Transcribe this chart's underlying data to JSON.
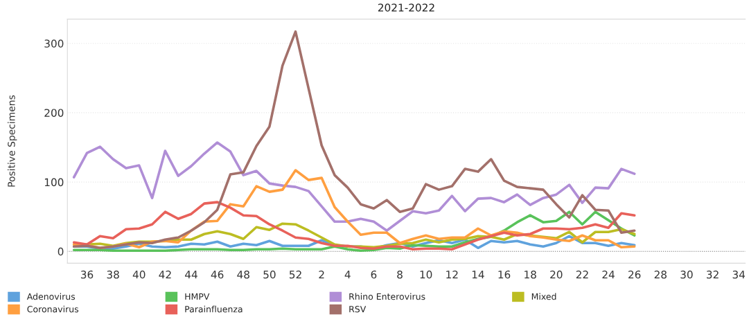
{
  "chart_data": {
    "type": "line",
    "title": "2021-2022",
    "ylabel": "Positive Specimens",
    "categories": [
      null,
      "36",
      null,
      "38",
      null,
      "40",
      null,
      "42",
      null,
      "44",
      null,
      "46",
      null,
      "48",
      null,
      "50",
      null,
      "52",
      null,
      "2",
      null,
      "4",
      null,
      "6",
      null,
      "8",
      null,
      "10",
      null,
      "12",
      null,
      "14",
      null,
      "16",
      null,
      "18",
      null,
      "20",
      null,
      "22",
      null,
      "24",
      null,
      "26",
      null,
      "28",
      null,
      "30",
      null,
      "32",
      null,
      "34"
    ],
    "series": [
      {
        "name": "Adenovirus",
        "color": "#5fa2dd",
        "values": [
          7,
          7,
          4,
          4,
          7,
          11,
          7,
          6,
          7,
          11,
          10,
          14,
          7,
          11,
          9,
          15,
          8,
          8,
          8,
          16,
          9,
          7,
          7,
          4,
          9,
          12,
          7,
          12,
          16,
          12,
          17,
          5,
          15,
          13,
          15,
          10,
          7,
          12,
          22,
          12,
          12,
          8,
          12,
          9,
          null,
          null,
          null,
          null,
          null,
          null,
          null,
          null
        ]
      },
      {
        "name": "HMPV",
        "color": "#59c25a",
        "values": [
          2,
          2,
          2,
          1,
          1,
          1,
          1,
          1,
          2,
          3,
          3,
          3,
          2,
          2,
          3,
          3,
          4,
          3,
          3,
          3,
          7,
          3,
          1,
          2,
          5,
          4,
          9,
          8,
          7,
          7,
          13,
          18,
          21,
          30,
          42,
          52,
          42,
          44,
          57,
          39,
          57,
          45,
          33,
          23,
          null,
          null,
          null,
          null,
          null,
          null,
          null,
          null
        ]
      },
      {
        "name": "Rhino Enterovirus",
        "color": "#b08ed6",
        "values": [
          107,
          142,
          151,
          133,
          120,
          124,
          77,
          145,
          109,
          123,
          141,
          157,
          144,
          110,
          116,
          98,
          95,
          93,
          87,
          65,
          43,
          43,
          47,
          43,
          30,
          44,
          58,
          55,
          59,
          80,
          58,
          76,
          77,
          71,
          82,
          67,
          77,
          82,
          96,
          70,
          92,
          91,
          119,
          112,
          null,
          null,
          null,
          null,
          null,
          null,
          null,
          null
        ]
      },
      {
        "name": "Mixed",
        "color": "#bcbd22",
        "values": [
          10,
          10,
          11,
          8,
          12,
          14,
          14,
          15,
          17,
          17,
          25,
          29,
          25,
          18,
          35,
          31,
          40,
          39,
          30,
          20,
          10,
          7,
          7,
          6,
          8,
          11,
          12,
          17,
          13,
          17,
          18,
          22,
          21,
          17,
          25,
          23,
          21,
          19,
          28,
          13,
          28,
          28,
          32,
          25,
          null,
          null,
          null,
          null,
          null,
          null,
          null,
          null
        ]
      },
      {
        "name": "Coronavirus",
        "color": "#ff9f40",
        "values": [
          10,
          9,
          5,
          7,
          11,
          6,
          14,
          15,
          13,
          30,
          43,
          44,
          68,
          65,
          94,
          86,
          89,
          117,
          103,
          106,
          64,
          43,
          24,
          27,
          27,
          12,
          18,
          23,
          18,
          20,
          20,
          33,
          23,
          29,
          27,
          22,
          20,
          17,
          15,
          23,
          16,
          16,
          6,
          7,
          null,
          null,
          null,
          null,
          null,
          null,
          null,
          null
        ]
      },
      {
        "name": "Parainfluenza",
        "color": "#e8615a",
        "values": [
          13,
          10,
          22,
          19,
          32,
          33,
          39,
          57,
          47,
          54,
          69,
          71,
          63,
          52,
          51,
          39,
          30,
          20,
          18,
          12,
          8,
          8,
          5,
          4,
          7,
          7,
          3,
          4,
          4,
          3,
          10,
          17,
          22,
          27,
          23,
          25,
          33,
          33,
          32,
          34,
          39,
          34,
          55,
          52,
          null,
          null,
          null,
          null,
          null,
          null,
          null,
          null
        ]
      },
      {
        "name": "RSV",
        "color": "#a3706a",
        "values": [
          7,
          8,
          5,
          7,
          10,
          13,
          12,
          17,
          20,
          30,
          42,
          60,
          111,
          114,
          152,
          180,
          268,
          317,
          235,
          153,
          110,
          92,
          68,
          62,
          74,
          57,
          62,
          97,
          89,
          94,
          119,
          115,
          133,
          102,
          93,
          91,
          89,
          68,
          49,
          81,
          60,
          59,
          27,
          30,
          null,
          null,
          null,
          null,
          null,
          null,
          null,
          null
        ]
      }
    ],
    "ylim": [
      -17,
      335
    ],
    "yticks": [
      0,
      100,
      200,
      300
    ],
    "grid": "y",
    "legend": "bottom",
    "ref_lines": [
      {
        "axis": "y",
        "value": 0,
        "color": "#777777",
        "line_style": "dotted"
      }
    ]
  }
}
